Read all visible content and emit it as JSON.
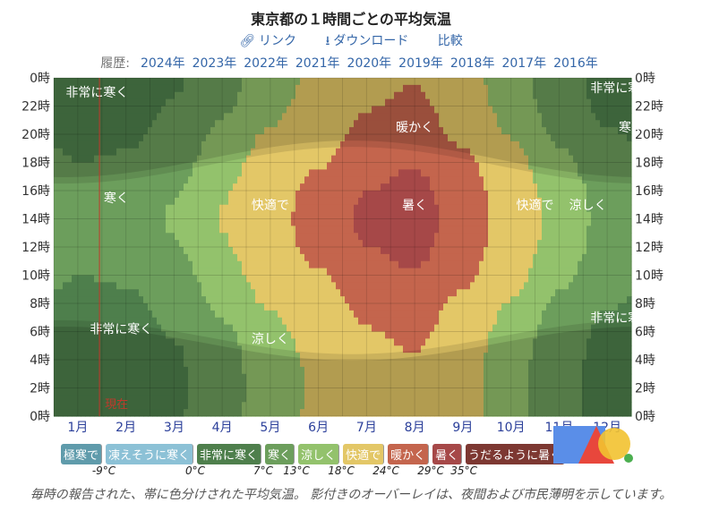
{
  "header": {
    "title": "東京都の１時間ごとの平均気温",
    "link_label": "リンク",
    "download_label": "ダウンロード",
    "compare_label": "比較",
    "link_icon": "link-icon",
    "download_icon": "download-icon"
  },
  "history": {
    "label": "履歴:",
    "years": [
      "2024年",
      "2023年",
      "2022年",
      "2021年",
      "2020年",
      "2019年",
      "2018年",
      "2017年",
      "2016年"
    ]
  },
  "chart_data": {
    "type": "heatmap",
    "title": "東京都の１時間ごとの平均気温",
    "x_tick_labels": [
      "1月",
      "2月",
      "3月",
      "4月",
      "5月",
      "6月",
      "7月",
      "8月",
      "9月",
      "10月",
      "11月",
      "12月"
    ],
    "y_tick_labels": [
      "0時",
      "22時",
      "20時",
      "18時",
      "16時",
      "14時",
      "12時",
      "10時",
      "8時",
      "6時",
      "4時",
      "2時",
      "0時"
    ],
    "grid": true,
    "current_marker_label": "現在",
    "current_marker_month": 2.0,
    "colors": {
      "current": "#c0392b"
    },
    "bands": [
      {
        "label": "極寒で",
        "color": "#5f9bab"
      },
      {
        "label": "凍えそうに寒く",
        "color": "#8cc1d6"
      },
      {
        "label": "非常に寒く",
        "color": "#4e7f4c"
      },
      {
        "label": "寒く",
        "color": "#6c9e5c"
      },
      {
        "label": "涼しく",
        "color": "#93c26c"
      },
      {
        "label": "快適で",
        "color": "#e3c767"
      },
      {
        "label": "暖かく",
        "color": "#c4654d"
      },
      {
        "label": "暑く",
        "color": "#a64848"
      },
      {
        "label": "うだるように暑く",
        "color": "#7d3832"
      }
    ],
    "thresholds": [
      "-9°C",
      "0°C",
      "7°C",
      "13°C",
      "18°C",
      "24°C",
      "29°C",
      "35°C"
    ],
    "region_labels": [
      {
        "text": "非常に寒く",
        "month": 1.4,
        "hour": 23
      },
      {
        "text": "非常に寒く",
        "month": 12.3,
        "hour": 23.3
      },
      {
        "text": "寒く",
        "month": 12.5,
        "hour": 20.5
      },
      {
        "text": "暖かく",
        "month": 8.0,
        "hour": 20.5
      },
      {
        "text": "寒く",
        "month": 1.8,
        "hour": 15.5
      },
      {
        "text": "快適で",
        "month": 5.0,
        "hour": 15
      },
      {
        "text": "暑く",
        "month": 8.0,
        "hour": 15
      },
      {
        "text": "快適で",
        "month": 10.5,
        "hour": 15
      },
      {
        "text": "涼しく",
        "month": 11.6,
        "hour": 15
      },
      {
        "text": "非常に寒く",
        "month": 1.9,
        "hour": 6.2
      },
      {
        "text": "涼しく",
        "month": 5.0,
        "hour": 5.5
      },
      {
        "text": "非常に寒く",
        "month": 12.3,
        "hour": 7
      }
    ]
  },
  "caption": "毎時の報告された、帯に色分けされた平均気温。 影付きのオーバーレイは、夜間および市民薄明を示しています。"
}
